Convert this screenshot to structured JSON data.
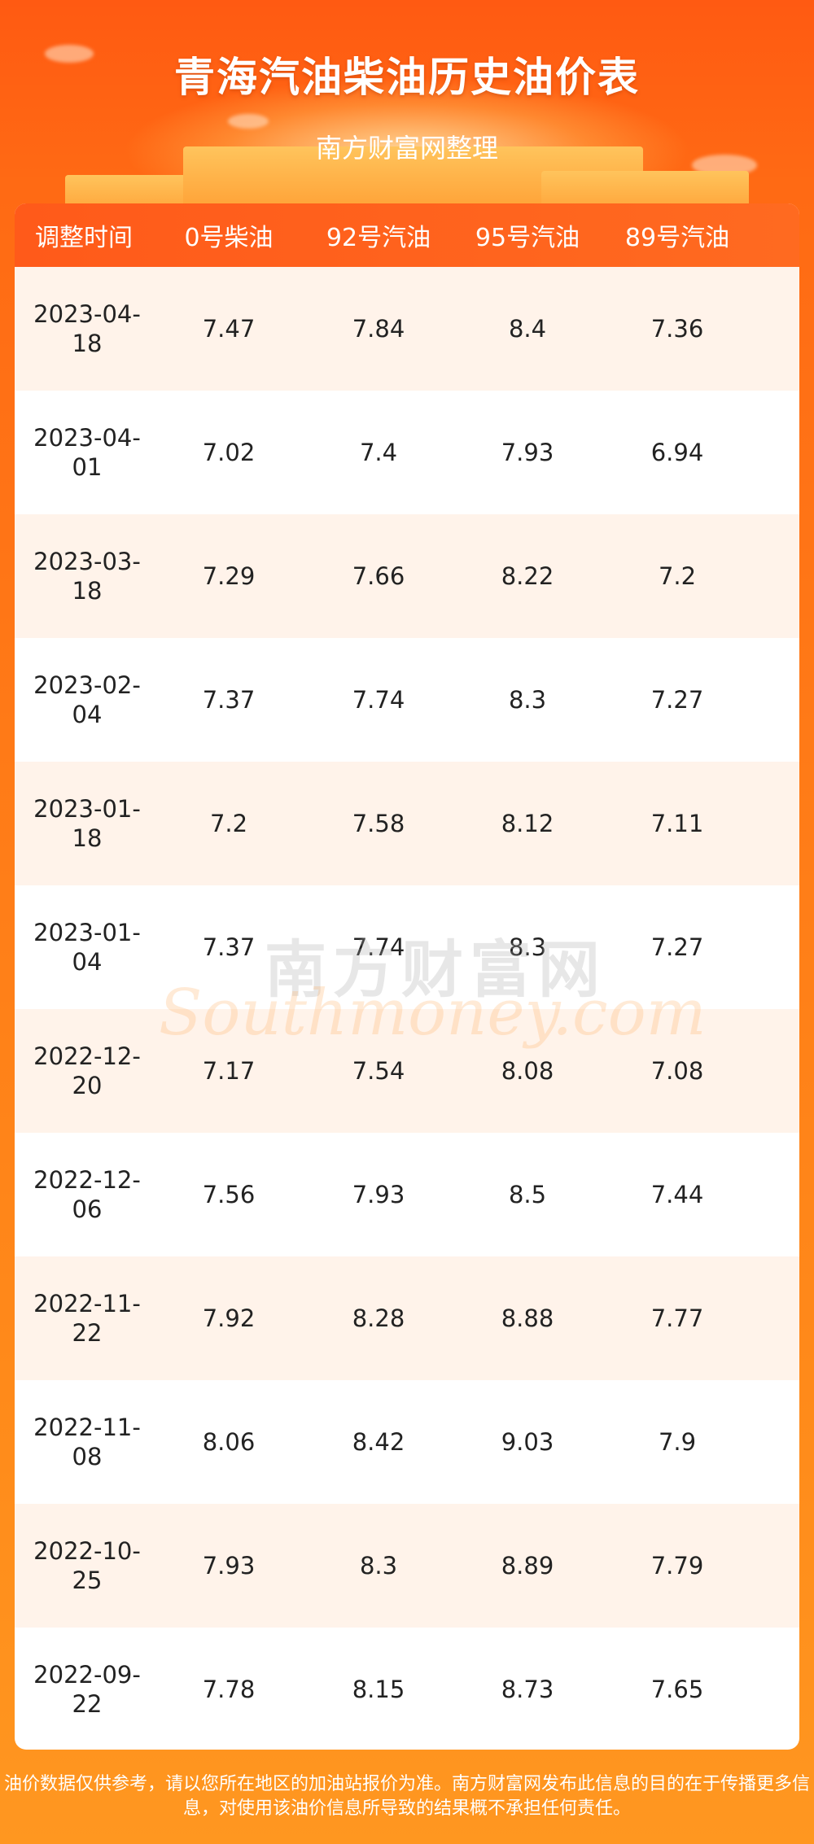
{
  "header": {
    "title": "青海汽油柴油历史油价表",
    "subtitle": "南方财富网整理"
  },
  "table": {
    "columns": [
      "调整时间",
      "0号柴油",
      "92号汽油",
      "95号汽油",
      "89号汽油"
    ],
    "rows": [
      {
        "date": "2023-04-18",
        "diesel0": "7.47",
        "gas92": "7.84",
        "gas95": "8.4",
        "gas89": "7.36"
      },
      {
        "date": "2023-04-01",
        "diesel0": "7.02",
        "gas92": "7.4",
        "gas95": "7.93",
        "gas89": "6.94"
      },
      {
        "date": "2023-03-18",
        "diesel0": "7.29",
        "gas92": "7.66",
        "gas95": "8.22",
        "gas89": "7.2"
      },
      {
        "date": "2023-02-04",
        "diesel0": "7.37",
        "gas92": "7.74",
        "gas95": "8.3",
        "gas89": "7.27"
      },
      {
        "date": "2023-01-18",
        "diesel0": "7.2",
        "gas92": "7.58",
        "gas95": "8.12",
        "gas89": "7.11"
      },
      {
        "date": "2023-01-04",
        "diesel0": "7.37",
        "gas92": "7.74",
        "gas95": "8.3",
        "gas89": "7.27"
      },
      {
        "date": "2022-12-20",
        "diesel0": "7.17",
        "gas92": "7.54",
        "gas95": "8.08",
        "gas89": "7.08"
      },
      {
        "date": "2022-12-06",
        "diesel0": "7.56",
        "gas92": "7.93",
        "gas95": "8.5",
        "gas89": "7.44"
      },
      {
        "date": "2022-11-22",
        "diesel0": "7.92",
        "gas92": "8.28",
        "gas95": "8.88",
        "gas89": "7.77"
      },
      {
        "date": "2022-11-08",
        "diesel0": "8.06",
        "gas92": "8.42",
        "gas95": "9.03",
        "gas89": "7.9"
      },
      {
        "date": "2022-10-25",
        "diesel0": "7.93",
        "gas92": "8.3",
        "gas95": "8.89",
        "gas89": "7.79"
      },
      {
        "date": "2022-09-22",
        "diesel0": "7.78",
        "gas92": "8.15",
        "gas95": "8.73",
        "gas89": "7.65"
      }
    ]
  },
  "watermark": {
    "cn": "南方财富网",
    "en": "Southmoney.com"
  },
  "footer": {
    "line1": "油价数据仅供参考，请以您所在地区的加油站报价为准。南方财富网发布此信息的目的在于传播更多信",
    "line2": "息，对使用该油价信息所导致的结果概不承担任何责任。"
  },
  "colors": {
    "accent": "#ff5a1a",
    "row_alt": "#fff3ea"
  }
}
